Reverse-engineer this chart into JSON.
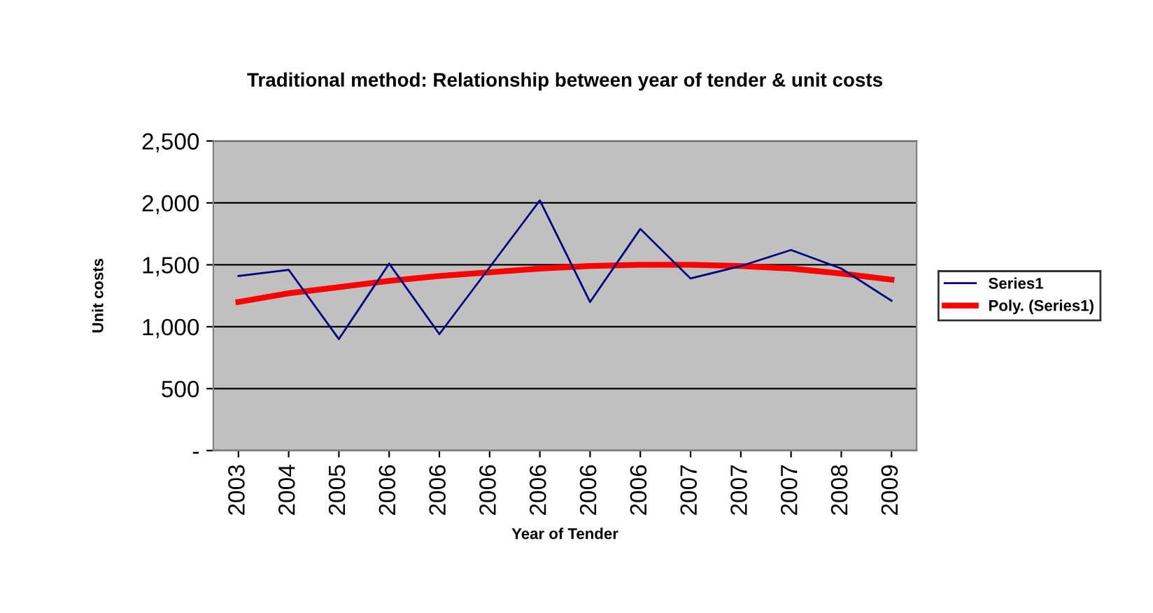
{
  "chart_data": {
    "type": "line",
    "title": "Traditional method: Relationship between year of tender & unit costs",
    "xlabel": "Year of Tender",
    "ylabel": "Unit costs",
    "categories": [
      "2003",
      "2004",
      "2005",
      "2006",
      "2006",
      "2006",
      "2006",
      "2006",
      "2006",
      "2007",
      "2007",
      "2007",
      "2008",
      "2009"
    ],
    "series": [
      {
        "name": "Series1",
        "color": "#000080",
        "values": [
          1410,
          1460,
          900,
          1510,
          940,
          1480,
          2020,
          1200,
          1790,
          1390,
          1490,
          1620,
          1470,
          1210
        ]
      },
      {
        "name": "Poly. (Series1)",
        "color": "#ff0000",
        "values": [
          1200,
          1270,
          1320,
          1370,
          1410,
          1440,
          1470,
          1490,
          1500,
          1500,
          1490,
          1470,
          1430,
          1380
        ]
      }
    ],
    "ylim": [
      0,
      2500
    ],
    "yticks": [
      {
        "value": 0,
        "label": "-"
      },
      500,
      {
        "value": 1000,
        "label": "1,000"
      },
      {
        "value": 1500,
        "label": "1,500"
      },
      {
        "value": 2000,
        "label": "2,000"
      },
      {
        "value": 2500,
        "label": "2,500"
      }
    ],
    "grid": "y",
    "legend": "right",
    "marker": "none",
    "line_style": "solid"
  }
}
